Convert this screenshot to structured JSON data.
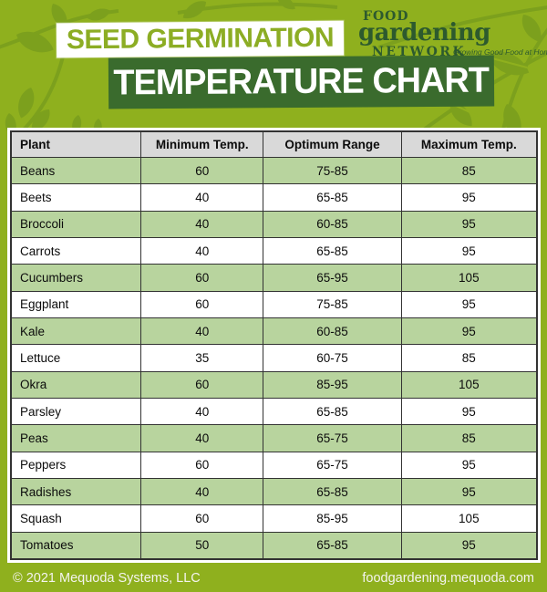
{
  "colors": {
    "background": "#8FB01E",
    "leaf_accent": "#7CA01D",
    "banner_text_green": "#8CAD24",
    "dark_green_banner": "#3A6B2D",
    "logo_green": "#2D5A2E",
    "row_green": "#B8D49E",
    "header_grey": "#D9D9D9",
    "table_border": "#333333",
    "footer_text": "#F4F4EF"
  },
  "header": {
    "title_top": "SEED GERMINATION",
    "title_bottom": "TEMPERATURE CHART",
    "logo": {
      "word1": "FOOD",
      "word2": "gardening",
      "word3": "NETWORK",
      "tagline": "Growing Good Food at Home"
    }
  },
  "chart_data": {
    "type": "table",
    "title": "Seed Germination Temperature Chart",
    "columns": [
      "Plant",
      "Minimum Temp.",
      "Optimum Range",
      "Maximum Temp."
    ],
    "rows": [
      [
        "Beans",
        "60",
        "75-85",
        "85"
      ],
      [
        "Beets",
        "40",
        "65-85",
        "95"
      ],
      [
        "Broccoli",
        "40",
        "60-85",
        "95"
      ],
      [
        "Carrots",
        "40",
        "65-85",
        "95"
      ],
      [
        "Cucumbers",
        "60",
        "65-95",
        "105"
      ],
      [
        "Eggplant",
        "60",
        "75-85",
        "95"
      ],
      [
        "Kale",
        "40",
        "60-85",
        "95"
      ],
      [
        "Lettuce",
        "35",
        "60-75",
        "85"
      ],
      [
        "Okra",
        "60",
        "85-95",
        "105"
      ],
      [
        "Parsley",
        "40",
        "65-85",
        "95"
      ],
      [
        "Peas",
        "40",
        "65-75",
        "85"
      ],
      [
        "Peppers",
        "60",
        "65-75",
        "95"
      ],
      [
        "Radishes",
        "40",
        "65-85",
        "95"
      ],
      [
        "Squash",
        "60",
        "85-95",
        "105"
      ],
      [
        "Tomatoes",
        "50",
        "65-85",
        "95"
      ]
    ]
  },
  "footer": {
    "copyright": "© 2021 Mequoda Systems, LLC",
    "website": "foodgardening.mequoda.com"
  }
}
